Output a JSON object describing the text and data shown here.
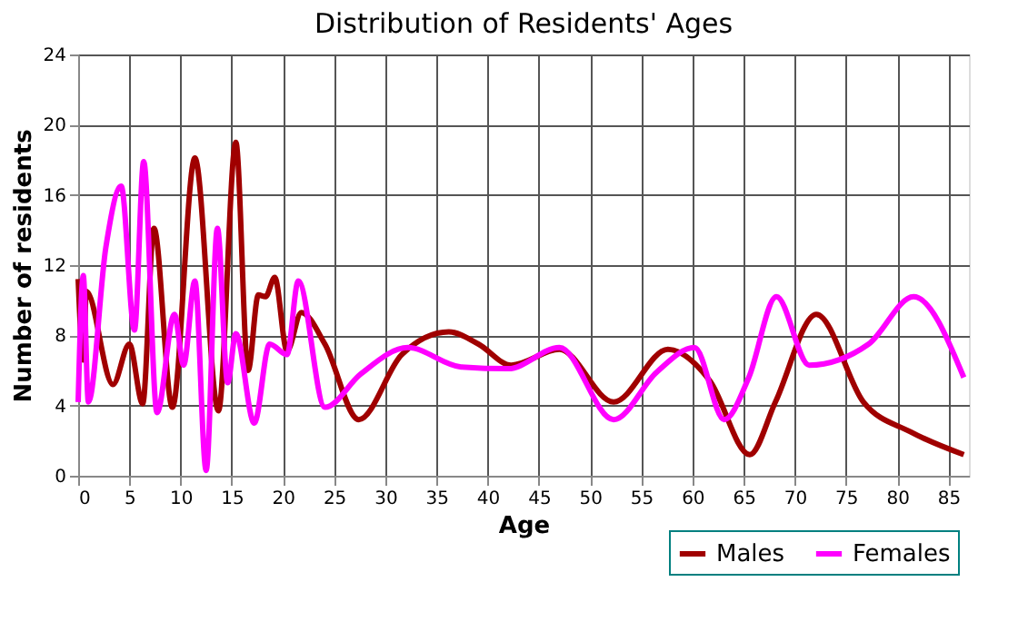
{
  "chart_data": {
    "type": "line",
    "title": "Distribution of Residents' Ages",
    "xlabel": "Age",
    "ylabel": "Number of residents",
    "xlim": [
      0,
      87
    ],
    "xticks": [
      0,
      5,
      10,
      15,
      20,
      25,
      30,
      35,
      40,
      45,
      50,
      55,
      60,
      65,
      70,
      75,
      80,
      85
    ],
    "ylim": [
      0,
      24
    ],
    "yticks": [
      0,
      4,
      8,
      12,
      16,
      20,
      24
    ],
    "grid": true,
    "legend": "bottom right",
    "marker": "none",
    "line_style": "solid",
    "series": [
      {
        "name": "Males",
        "color": "#a00000",
        "x": [
          0,
          0.5,
          0.8,
          3.4,
          5,
          6.3,
          7.4,
          9.2,
          11.4,
          13.7,
          15.4,
          16.6,
          17.6,
          18.3,
          19.2,
          20.4,
          21.8,
          24.1,
          27.4,
          31.6,
          36.2,
          39.1,
          42.3,
          47,
          52.3,
          57.6,
          61.7,
          65.6,
          68.1,
          72.1,
          76.7,
          81.3,
          86.5
        ],
        "values": [
          11.2,
          6.6,
          10.5,
          5.2,
          7.5,
          4.1,
          14.1,
          3.9,
          18.1,
          3.7,
          19,
          6,
          10.3,
          10.2,
          11.3,
          7.1,
          9.3,
          7.5,
          3.2,
          6.9,
          8.2,
          7.5,
          6.3,
          7.2,
          4.2,
          7.2,
          5.4,
          1.2,
          4.2,
          9.2,
          4.2,
          2.5,
          1.2
        ]
      },
      {
        "name": "Females",
        "color": "#ff00ff",
        "x": [
          0,
          0.5,
          1,
          2.7,
          4.2,
          5.5,
          6.4,
          7.7,
          9.4,
          10.3,
          11.4,
          12.5,
          13.6,
          14.6,
          15.4,
          17.2,
          18.7,
          20.4,
          21.5,
          24.1,
          27.6,
          32.2,
          37.4,
          42,
          47,
          52.3,
          56.5,
          60.2,
          63.1,
          65.5,
          68.2,
          71.4,
          77.2,
          81.6,
          86.5
        ],
        "values": [
          4.2,
          11.4,
          4.2,
          13,
          16.5,
          8.3,
          17.9,
          3.6,
          9.2,
          6.3,
          11.1,
          0.3,
          14.1,
          5.3,
          8.1,
          3,
          7.5,
          6.9,
          11.1,
          3.9,
          5.8,
          7.3,
          6.2,
          6.1,
          7.3,
          3.2,
          5.9,
          7.3,
          3.2,
          5.6,
          10.2,
          6.3,
          7.5,
          10.2,
          5.6
        ]
      }
    ]
  }
}
